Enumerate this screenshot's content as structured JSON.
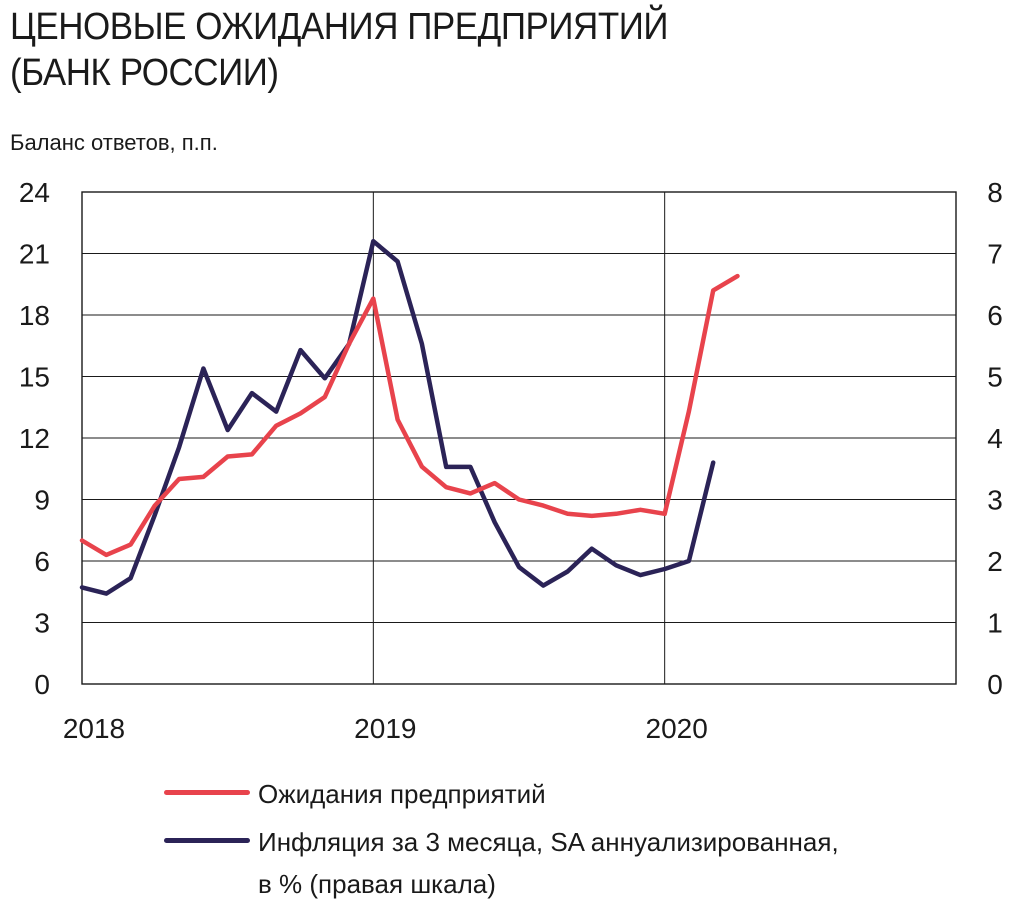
{
  "title_lines": [
    "ЦЕНОВЫЕ ОЖИДАНИЯ ПРЕДПРИЯТИЙ",
    "(БАНК РОССИИ)"
  ],
  "units_label": "Баланс ответов, п.п.",
  "legend": [
    {
      "label": "Ожидания предприятий",
      "color": "#e8434c"
    },
    {
      "label": "Инфляция за 3 месяца, SA аннуализированная,",
      "label_line2": "в % (правая шкала)",
      "color": "#2b2357"
    }
  ],
  "chart_data": {
    "type": "line",
    "x_tick_labels": [
      "2018",
      "2019",
      "2020"
    ],
    "x_ticks_month_index": [
      0,
      12,
      24
    ],
    "xlim": [
      0,
      36
    ],
    "ylim_left": [
      0,
      24
    ],
    "ylim_right": [
      0,
      8
    ],
    "y_left_ticks": [
      0,
      3,
      6,
      9,
      12,
      15,
      18,
      21,
      24
    ],
    "y_right_ticks": [
      0,
      1,
      2,
      3,
      4,
      5,
      6,
      7,
      8
    ],
    "grid": true,
    "series": [
      {
        "name": "Ожидания предприятий",
        "axis": "left",
        "color": "#e8434c",
        "x": [
          0,
          1,
          2,
          3,
          4,
          5,
          6,
          7,
          8,
          9,
          10,
          11,
          12,
          13,
          14,
          15,
          16,
          17,
          18,
          19,
          20,
          21,
          22,
          23,
          24,
          25,
          26,
          27
        ],
        "values": [
          7.0,
          6.3,
          6.8,
          8.7,
          10.0,
          10.1,
          11.1,
          11.2,
          12.6,
          13.2,
          14.0,
          16.6,
          18.8,
          12.9,
          10.6,
          9.6,
          9.3,
          9.8,
          9.0,
          8.7,
          8.3,
          8.2,
          8.3,
          8.5,
          8.3,
          13.3,
          19.2,
          19.9
        ]
      },
      {
        "name": "Инфляция за 3 месяца, SA аннуализированная, в % (правая шкала)",
        "axis": "right",
        "color": "#2b2357",
        "x": [
          0,
          1,
          2,
          3,
          4,
          5,
          6,
          7,
          8,
          9,
          10,
          11,
          12,
          13,
          14,
          15,
          16,
          17,
          18,
          19,
          20,
          21,
          22,
          23,
          24,
          25,
          26
        ],
        "values": [
          1.57,
          1.47,
          1.72,
          2.75,
          3.85,
          5.13,
          4.13,
          4.73,
          4.43,
          5.43,
          4.97,
          5.53,
          7.2,
          6.87,
          5.53,
          3.53,
          3.53,
          2.63,
          1.9,
          1.6,
          1.83,
          2.2,
          1.93,
          1.77,
          1.87,
          2.0,
          3.6
        ]
      }
    ]
  }
}
